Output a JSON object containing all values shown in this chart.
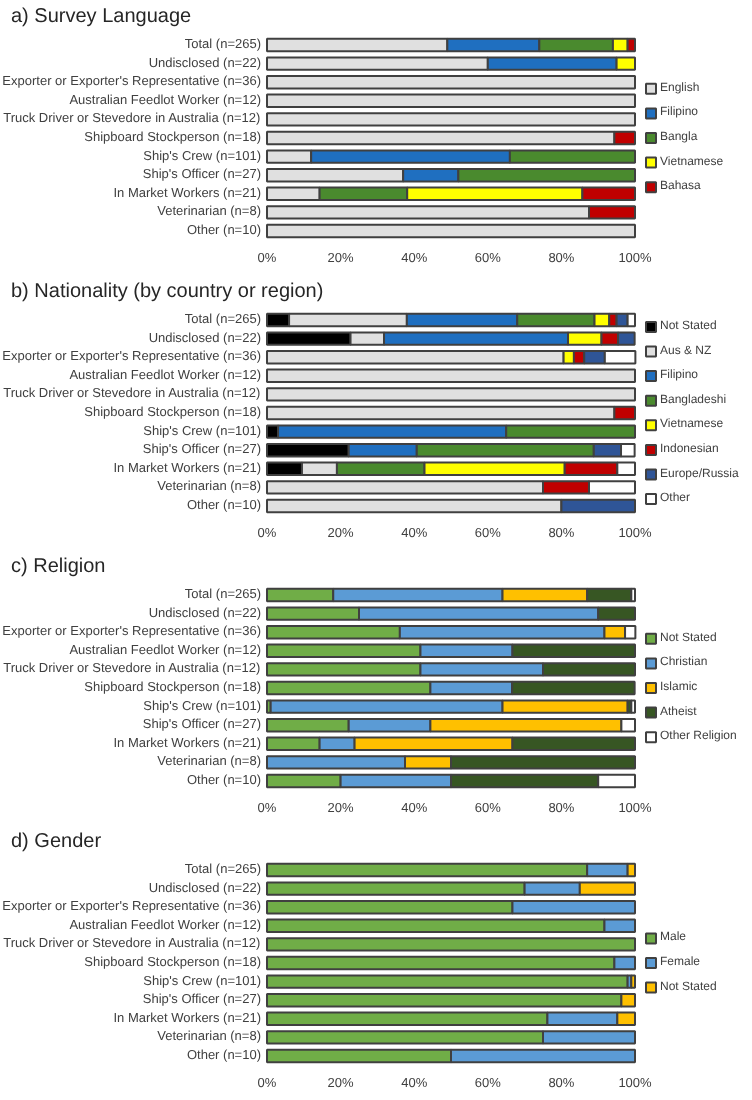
{
  "chart_data": [
    {
      "type": "bar",
      "orientation": "horizontal",
      "stacked": true,
      "title": "a) Survey Language",
      "categories": [
        "Total (n=265)",
        "Undisclosed (n=22)",
        "Exporter or Exporter's Representative (n=36)",
        "Australian Feedlot Worker (n=12)",
        "Truck Driver or Stevedore in Australia (n=12)",
        "Shipboard Stockperson (n=18)",
        "Ship's Crew (n=101)",
        "Ship's Officer (n=27)",
        "In Market Workers (n=21)",
        "Veterinarian (n=8)",
        "Other (n=10)"
      ],
      "series": [
        {
          "name": "English",
          "color": "#e0e0e0",
          "values": [
            49,
            60,
            100,
            100,
            100,
            94.4,
            12,
            37,
            14.3,
            87.5,
            100
          ]
        },
        {
          "name": "Filipino",
          "color": "#1f6fc0",
          "values": [
            25,
            35,
            0,
            0,
            0,
            0,
            54,
            15,
            0,
            0,
            0
          ]
        },
        {
          "name": "Bangla",
          "color": "#4a8a2e",
          "values": [
            20,
            0,
            0,
            0,
            0,
            0,
            34,
            48,
            23.8,
            0,
            0
          ]
        },
        {
          "name": "Vietnamese",
          "color": "#ffff00",
          "values": [
            4,
            5,
            0,
            0,
            0,
            0,
            0,
            0,
            47.6,
            0,
            0
          ]
        },
        {
          "name": "Bahasa",
          "color": "#c00000",
          "values": [
            2,
            0,
            0,
            0,
            0,
            5.6,
            0,
            0,
            14.3,
            12.5,
            0
          ]
        }
      ],
      "xlim": [
        0,
        100
      ],
      "xticks": [
        {
          "value": 0,
          "label": "0%"
        },
        {
          "value": 20,
          "label": "20%"
        },
        {
          "value": 40,
          "label": "40%"
        },
        {
          "value": 60,
          "label": "60%"
        },
        {
          "value": 80,
          "label": "80%"
        },
        {
          "value": 100,
          "label": "100%"
        }
      ],
      "legend": "right",
      "grid": false
    },
    {
      "type": "bar",
      "orientation": "horizontal",
      "stacked": true,
      "title": "b) Nationality (by country or region)",
      "categories": [
        "Total (n=265)",
        "Undisclosed (n=22)",
        "Exporter or Exporter's Representative (n=36)",
        "Australian Feedlot Worker (n=12)",
        "Truck Driver or Stevedore in Australia (n=12)",
        "Shipboard Stockperson (n=18)",
        "Ship's Crew (n=101)",
        "Ship's Officer (n=27)",
        "In Market Workers (n=21)",
        "Veterinarian (n=8)",
        "Other (n=10)"
      ],
      "series": [
        {
          "name": "Not Stated",
          "color": "#000000",
          "values": [
            6,
            22.7,
            0,
            0,
            0,
            0,
            3,
            22.2,
            9.5,
            0,
            0
          ]
        },
        {
          "name": "Aus & NZ",
          "color": "#e0e0e0",
          "values": [
            32,
            9.1,
            80.6,
            100,
            100,
            94.4,
            0,
            0,
            9.5,
            75,
            80
          ]
        },
        {
          "name": "Filipino",
          "color": "#1f6fc0",
          "values": [
            30,
            50,
            0,
            0,
            0,
            0,
            62,
            18.5,
            0,
            0,
            0
          ]
        },
        {
          "name": "Bangladeshi",
          "color": "#4a8a2e",
          "values": [
            21,
            0,
            0,
            0,
            0,
            0,
            35,
            48.1,
            23.8,
            0,
            0
          ]
        },
        {
          "name": "Vietnamese",
          "color": "#ffff00",
          "values": [
            4,
            9.1,
            2.8,
            0,
            0,
            0,
            0,
            0,
            38.1,
            0,
            0
          ]
        },
        {
          "name": "Indonesian",
          "color": "#c00000",
          "values": [
            2,
            4.5,
            2.8,
            0,
            0,
            5.6,
            0,
            0,
            14.3,
            12.5,
            0
          ]
        },
        {
          "name": "Europe/Russia",
          "color": "#2f5597",
          "values": [
            3,
            4.5,
            5.6,
            0,
            0,
            0,
            0,
            7.4,
            0,
            0,
            20
          ]
        },
        {
          "name": "Other",
          "color": "#ffffff",
          "values": [
            2,
            0,
            8.3,
            0,
            0,
            0,
            0,
            3.7,
            4.8,
            12.5,
            0
          ]
        }
      ],
      "xlim": [
        0,
        100
      ],
      "xticks": [
        {
          "value": 0,
          "label": "0%"
        },
        {
          "value": 20,
          "label": "20%"
        },
        {
          "value": 40,
          "label": "40%"
        },
        {
          "value": 60,
          "label": "60%"
        },
        {
          "value": 80,
          "label": "80%"
        },
        {
          "value": 100,
          "label": "100%"
        }
      ],
      "legend": "right",
      "grid": false
    },
    {
      "type": "bar",
      "orientation": "horizontal",
      "stacked": true,
      "title": "c) Religion",
      "categories": [
        "Total (n=265)",
        "Undisclosed (n=22)",
        "Exporter or Exporter's Representative (n=36)",
        "Australian Feedlot Worker (n=12)",
        "Truck Driver or Stevedore in Australia (n=12)",
        "Shipboard Stockperson (n=18)",
        "Ship's Crew (n=101)",
        "Ship's Officer (n=27)",
        "In Market Workers (n=21)",
        "Veterinarian (n=8)",
        "Other (n=10)"
      ],
      "series": [
        {
          "name": "Not Stated",
          "color": "#70ad47",
          "values": [
            18,
            25,
            36.1,
            41.7,
            41.7,
            44.4,
            1,
            22.2,
            14.3,
            0,
            20
          ]
        },
        {
          "name": "Christian",
          "color": "#5b9bd5",
          "values": [
            46,
            65,
            55.6,
            25,
            33.3,
            22.2,
            63,
            22.2,
            9.5,
            37.5,
            30
          ]
        },
        {
          "name": "Islamic",
          "color": "#ffc000",
          "values": [
            23,
            0,
            5.6,
            0,
            0,
            0,
            34,
            51.9,
            42.9,
            12.5,
            0
          ]
        },
        {
          "name": "Atheist",
          "color": "#375623",
          "values": [
            12,
            10,
            0,
            33.3,
            25,
            33.3,
            1,
            0,
            33.3,
            50,
            40
          ]
        },
        {
          "name": "Other Religion",
          "color": "#ffffff",
          "values": [
            1,
            0,
            2.8,
            0,
            0,
            0,
            1,
            3.7,
            0,
            0,
            10
          ]
        }
      ],
      "xlim": [
        0,
        100
      ],
      "xticks": [
        {
          "value": 0,
          "label": "0%"
        },
        {
          "value": 20,
          "label": "20%"
        },
        {
          "value": 40,
          "label": "40%"
        },
        {
          "value": 60,
          "label": "60%"
        },
        {
          "value": 80,
          "label": "80%"
        },
        {
          "value": 100,
          "label": "100%"
        }
      ],
      "legend": "right",
      "grid": false
    },
    {
      "type": "bar",
      "orientation": "horizontal",
      "stacked": true,
      "title": "d) Gender",
      "categories": [
        "Total (n=265)",
        "Undisclosed (n=22)",
        "Exporter or Exporter's Representative (n=36)",
        "Australian Feedlot Worker (n=12)",
        "Truck Driver or Stevedore in Australia (n=12)",
        "Shipboard Stockperson (n=18)",
        "Ship's Crew (n=101)",
        "Ship's Officer (n=27)",
        "In Market Workers (n=21)",
        "Veterinarian (n=8)",
        "Other (n=10)"
      ],
      "series": [
        {
          "name": "Male",
          "color": "#70ad47",
          "values": [
            87,
            70,
            66.7,
            91.7,
            100,
            94.4,
            98,
            96.3,
            76.2,
            75,
            50
          ]
        },
        {
          "name": "Female",
          "color": "#5b9bd5",
          "values": [
            11,
            15,
            33.3,
            8.3,
            0,
            5.6,
            1,
            0,
            19,
            25,
            50
          ]
        },
        {
          "name": "Not Stated",
          "color": "#ffc000",
          "values": [
            2,
            15,
            0,
            0,
            0,
            0,
            1,
            3.7,
            4.8,
            0,
            0
          ]
        }
      ],
      "xlim": [
        0,
        100
      ],
      "xticks": [
        {
          "value": 0,
          "label": "0%"
        },
        {
          "value": 20,
          "label": "20%"
        },
        {
          "value": 40,
          "label": "40%"
        },
        {
          "value": 60,
          "label": "60%"
        },
        {
          "value": 80,
          "label": "80%"
        },
        {
          "value": 100,
          "label": "100%"
        }
      ],
      "legend": "right",
      "grid": false
    }
  ]
}
